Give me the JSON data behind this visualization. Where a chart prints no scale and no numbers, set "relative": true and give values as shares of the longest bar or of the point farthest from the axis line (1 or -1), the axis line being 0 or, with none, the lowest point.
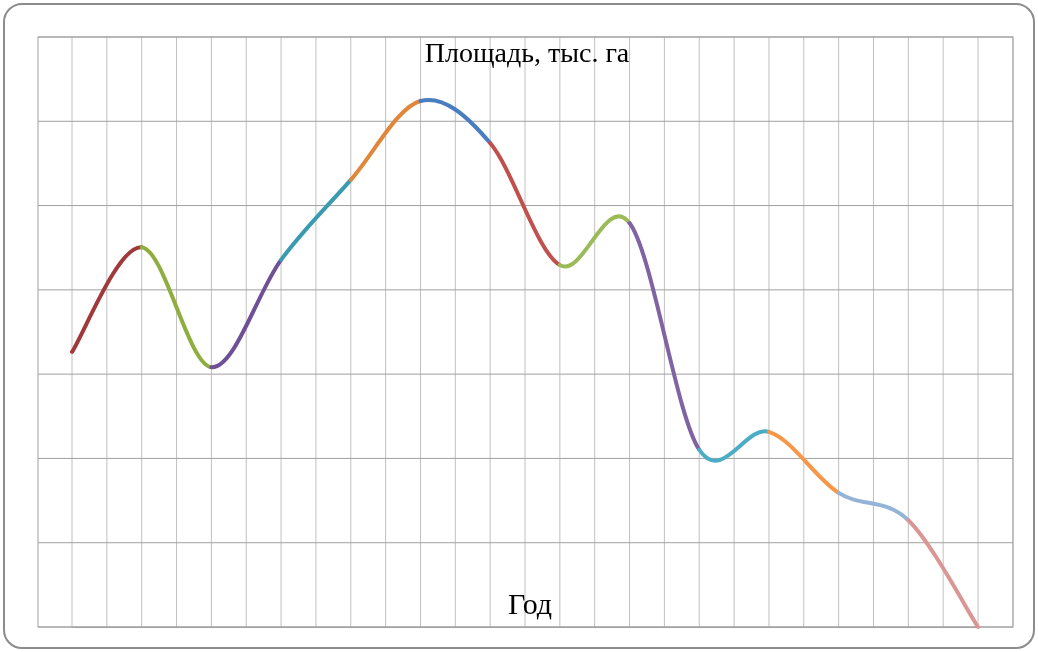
{
  "chart_data": {
    "type": "line",
    "title": "Площадь, тыс. га",
    "xlabel": "Год",
    "relative": true,
    "grid": true,
    "categories": [
      null,
      null,
      null,
      null,
      null,
      null,
      null,
      null,
      null,
      null,
      null,
      null,
      null,
      null
    ],
    "series": [
      {
        "color": "#a0393a",
        "values": [
          0.523,
          0.722,
          null,
          null,
          null,
          null,
          null,
          null,
          null,
          null,
          null,
          null,
          null,
          null
        ]
      },
      {
        "color": "#8fae3f",
        "values": [
          null,
          0.722,
          0.494,
          null,
          null,
          null,
          null,
          null,
          null,
          null,
          null,
          null,
          null,
          null
        ]
      },
      {
        "color": "#6f4f96",
        "values": [
          null,
          null,
          0.494,
          0.698,
          null,
          null,
          null,
          null,
          null,
          null,
          null,
          null,
          null,
          null
        ]
      },
      {
        "color": "#3a9ab0",
        "values": [
          null,
          null,
          null,
          0.698,
          0.85,
          null,
          null,
          null,
          null,
          null,
          null,
          null,
          null,
          null
        ]
      },
      {
        "color": "#e0873a",
        "values": [
          null,
          null,
          null,
          null,
          0.85,
          1,
          null,
          null,
          null,
          null,
          null,
          null,
          null,
          null
        ]
      },
      {
        "color": "#4a7dbf",
        "values": [
          null,
          null,
          null,
          null,
          null,
          1,
          0.92,
          null,
          null,
          null,
          null,
          null,
          null,
          null
        ]
      },
      {
        "color": "#c0504d",
        "values": [
          null,
          null,
          null,
          null,
          null,
          null,
          0.92,
          0.688,
          null,
          null,
          null,
          null,
          null,
          null
        ]
      },
      {
        "color": "#9bbb59",
        "values": [
          null,
          null,
          null,
          null,
          null,
          null,
          null,
          0.688,
          0.768,
          null,
          null,
          null,
          null,
          null
        ]
      },
      {
        "color": "#7f63a2",
        "values": [
          null,
          null,
          null,
          null,
          null,
          null,
          null,
          null,
          0.768,
          0.337,
          null,
          null,
          null,
          null
        ]
      },
      {
        "color": "#4bacc6",
        "values": [
          null,
          null,
          null,
          null,
          null,
          null,
          null,
          null,
          null,
          0.337,
          0.371,
          null,
          null,
          null
        ]
      },
      {
        "color": "#f79646",
        "values": [
          null,
          null,
          null,
          null,
          null,
          null,
          null,
          null,
          null,
          null,
          0.371,
          0.255,
          null,
          null
        ]
      },
      {
        "color": "#95b3d7",
        "values": [
          null,
          null,
          null,
          null,
          null,
          null,
          null,
          null,
          null,
          null,
          null,
          0.255,
          0.203,
          null
        ]
      },
      {
        "color": "#d99694",
        "values": [
          null,
          null,
          null,
          null,
          null,
          null,
          null,
          null,
          null,
          null,
          null,
          null,
          0.203,
          0
        ]
      }
    ]
  }
}
